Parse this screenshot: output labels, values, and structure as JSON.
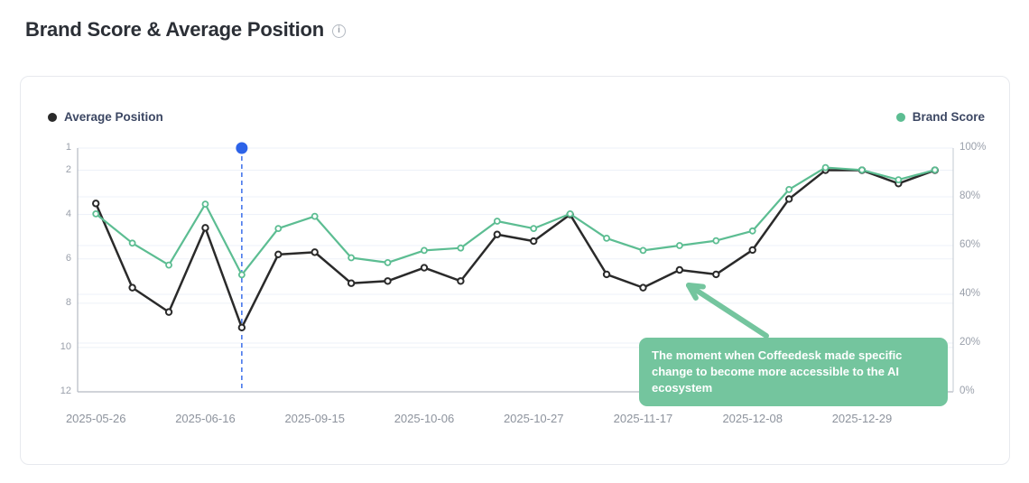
{
  "header": {
    "title": "Brand Score & Average Position",
    "info_glyph": "i"
  },
  "chart_data": {
    "type": "line",
    "num_points": 24,
    "x_ticks": [
      {
        "index": 0,
        "label": "2025-05-26"
      },
      {
        "index": 3,
        "label": "2025-06-16"
      },
      {
        "index": 6,
        "label": "2025-09-15"
      },
      {
        "index": 9,
        "label": "2025-10-06"
      },
      {
        "index": 12,
        "label": "2025-10-27"
      },
      {
        "index": 15,
        "label": "2025-11-17"
      },
      {
        "index": 18,
        "label": "2025-12-08"
      },
      {
        "index": 21,
        "label": "2025-12-29"
      }
    ],
    "left_axis": {
      "title": "Average Position",
      "min": 1,
      "max": 12,
      "inverted": true,
      "ticks": [
        1,
        2,
        4,
        6,
        8,
        10,
        12
      ]
    },
    "right_axis": {
      "title": "Brand Score",
      "min": 0,
      "max": 100,
      "tick_values": [
        0,
        20,
        40,
        60,
        80,
        100
      ],
      "tick_labels": [
        "0%",
        "20%",
        "40%",
        "60%",
        "80%",
        "100%"
      ]
    },
    "series": [
      {
        "name": "Average Position",
        "axis": "left",
        "color": "#2a2a2a",
        "values": [
          3.5,
          7.3,
          8.4,
          4.6,
          9.1,
          5.8,
          5.7,
          7.1,
          7.0,
          6.4,
          7.0,
          4.9,
          5.2,
          4.0,
          6.7,
          7.3,
          6.5,
          6.7,
          5.6,
          3.3,
          2.0,
          2.0,
          2.6,
          2.0
        ]
      },
      {
        "name": "Brand Score",
        "axis": "right",
        "color": "#5cbd92",
        "values": [
          73,
          61,
          52,
          77,
          48,
          67,
          72,
          55,
          53,
          58,
          59,
          70,
          67,
          73,
          63,
          58,
          60,
          62,
          66,
          83,
          92,
          91,
          87,
          91
        ]
      }
    ],
    "event_marker": {
      "point_index": 4,
      "color": "#2d63e8",
      "style": "dashed-vertical-line-with-dot"
    },
    "annotation": {
      "text": "The moment when Coffeedesk made specific change to become more accessible to the AI ecosystem",
      "color": "#74c59e"
    },
    "grid_color": "#edf1f8",
    "axis_line_color": "#b3b9c2",
    "right_axis_line_color": "#ccd1d8",
    "legend_position": "top-left-and-top-right",
    "grid_on": true
  }
}
